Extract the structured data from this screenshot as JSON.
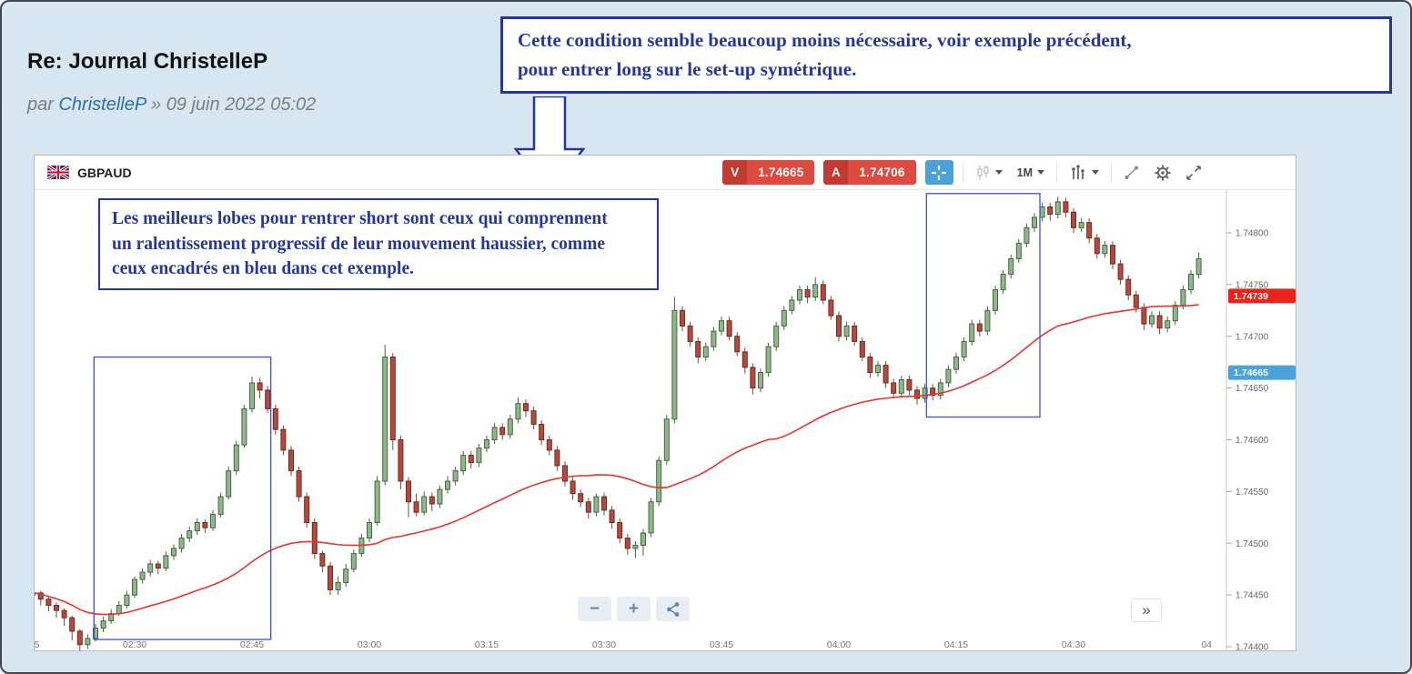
{
  "post": {
    "title": "Re: Journal ChristelleP",
    "byline_prefix": "par",
    "author": "ChristelleP",
    "separator": "»",
    "date": "09 juin 2022 05:02"
  },
  "annotations": {
    "accent_color": "#25379e",
    "callout_top_lines": {
      "0": "Cette condition semble beaucoup moins nécessaire, voir exemple précédent,",
      "1": "pour entrer long sur le set-up symétrique."
    },
    "callout_chart_lines": {
      "0": "Les meilleurs lobes pour rentrer short sont ceux qui comprennent",
      "1": "un ralentissement progressif de leur mouvement haussier, comme",
      "2": "ceux encadrés en bleu dans cet exemple."
    }
  },
  "toolbar": {
    "symbol": "GBPAUD",
    "sell_label": "V",
    "sell_price": "1.74665",
    "buy_label": "A",
    "buy_price": "1.74706",
    "timeframe": "1M"
  },
  "controls": {
    "zoom_out": "−",
    "zoom_in": "+",
    "collapse": "»"
  },
  "chart_data": {
    "type": "candlestick",
    "symbol": "GBPAUD",
    "interval": "1M",
    "price_base": 1.74,
    "price_unit": 1e-05,
    "price_ticks": [
      {
        "label": "1.74800",
        "v": 800
      },
      {
        "label": "1.74750",
        "v": 750
      },
      {
        "label": "1.74700",
        "v": 700
      },
      {
        "label": "1.74650",
        "v": 650
      },
      {
        "label": "1.74600",
        "v": 600
      },
      {
        "label": "1.74550",
        "v": 550
      },
      {
        "label": "1.74500",
        "v": 500
      },
      {
        "label": "1.74450",
        "v": 450
      },
      {
        "label": "1.74400",
        "v": 400
      }
    ],
    "time_ticks": [
      {
        "i": 2.5,
        "label": "5"
      },
      {
        "i": 15,
        "label": "02:30"
      },
      {
        "i": 30,
        "label": "02:45"
      },
      {
        "i": 45,
        "label": "03:00"
      },
      {
        "i": 60,
        "label": "03:15"
      },
      {
        "i": 75,
        "label": "03:30"
      },
      {
        "i": 90,
        "label": "03:45"
      },
      {
        "i": 105,
        "label": "04:00"
      },
      {
        "i": 120,
        "label": "04:15"
      },
      {
        "i": 135,
        "label": "04:30"
      },
      {
        "i": 152,
        "label": "04"
      }
    ],
    "price_tags": [
      {
        "label": "1.74739",
        "v": 739,
        "color": "#ea241a"
      },
      {
        "label": "1.74665",
        "v": 665,
        "color": "#4ba3dc"
      }
    ],
    "ma": {
      "type": "sma",
      "period": 50,
      "color": "#e8352a"
    },
    "highlight_boxes": [
      {
        "i1": 9.8,
        "i2": 32.4,
        "v1": 407,
        "v2": 680
      },
      {
        "i1": 116.2,
        "i2": 130.7,
        "v1": 622,
        "v2": 838
      }
    ],
    "colors": {
      "up_fill": "#93b58d",
      "up_stroke": "#3f6b39",
      "down_fill": "#b24a3e",
      "down_stroke": "#76281f",
      "wick": "#555555"
    },
    "candles": [
      [
        460,
        465,
        452,
        455
      ],
      [
        455,
        458,
        446,
        450
      ],
      [
        450,
        456,
        448,
        452
      ],
      [
        452,
        454,
        440,
        446
      ],
      [
        446,
        448,
        434,
        440
      ],
      [
        440,
        443,
        428,
        435
      ],
      [
        435,
        437,
        420,
        428
      ],
      [
        428,
        430,
        406,
        415
      ],
      [
        415,
        417,
        396,
        402
      ],
      [
        402,
        412,
        398,
        408
      ],
      [
        408,
        422,
        405,
        418
      ],
      [
        418,
        429,
        414,
        425
      ],
      [
        425,
        436,
        422,
        432
      ],
      [
        432,
        444,
        430,
        440
      ],
      [
        440,
        454,
        437,
        450
      ],
      [
        450,
        468,
        447,
        465
      ],
      [
        465,
        476,
        461,
        472
      ],
      [
        472,
        484,
        468,
        480
      ],
      [
        480,
        483,
        470,
        476
      ],
      [
        476,
        492,
        473,
        488
      ],
      [
        488,
        499,
        484,
        495
      ],
      [
        495,
        509,
        491,
        505
      ],
      [
        505,
        516,
        501,
        512
      ],
      [
        512,
        524,
        508,
        520
      ],
      [
        520,
        523,
        510,
        515
      ],
      [
        515,
        532,
        512,
        528
      ],
      [
        528,
        549,
        525,
        545
      ],
      [
        545,
        574,
        542,
        570
      ],
      [
        570,
        599,
        566,
        595
      ],
      [
        595,
        634,
        592,
        630
      ],
      [
        630,
        661,
        626,
        655
      ],
      [
        655,
        660,
        640,
        648
      ],
      [
        648,
        652,
        626,
        630
      ],
      [
        630,
        634,
        605,
        610
      ],
      [
        610,
        614,
        585,
        590
      ],
      [
        590,
        594,
        565,
        570
      ],
      [
        570,
        574,
        540,
        545
      ],
      [
        545,
        549,
        515,
        520
      ],
      [
        520,
        524,
        485,
        490
      ],
      [
        490,
        493,
        472,
        478
      ],
      [
        478,
        482,
        450,
        455
      ],
      [
        455,
        468,
        450,
        462
      ],
      [
        462,
        480,
        458,
        475
      ],
      [
        475,
        494,
        472,
        490
      ],
      [
        490,
        509,
        487,
        505
      ],
      [
        505,
        524,
        501,
        520
      ],
      [
        520,
        565,
        517,
        560
      ],
      [
        560,
        692,
        556,
        680
      ],
      [
        680,
        684,
        590,
        600
      ],
      [
        600,
        604,
        552,
        560
      ],
      [
        560,
        564,
        525,
        540
      ],
      [
        540,
        548,
        526,
        530
      ],
      [
        530,
        550,
        527,
        545
      ],
      [
        545,
        549,
        531,
        538
      ],
      [
        538,
        556,
        534,
        552
      ],
      [
        552,
        565,
        548,
        560
      ],
      [
        560,
        574,
        556,
        570
      ],
      [
        570,
        589,
        566,
        585
      ],
      [
        585,
        589,
        572,
        578
      ],
      [
        578,
        596,
        574,
        592
      ],
      [
        592,
        604,
        588,
        600
      ],
      [
        600,
        616,
        596,
        612
      ],
      [
        612,
        616,
        600,
        605
      ],
      [
        605,
        624,
        601,
        620
      ],
      [
        620,
        641,
        616,
        635
      ],
      [
        635,
        639,
        622,
        628
      ],
      [
        628,
        632,
        610,
        615
      ],
      [
        615,
        619,
        595,
        600
      ],
      [
        600,
        604,
        585,
        590
      ],
      [
        590,
        594,
        570,
        575
      ],
      [
        575,
        579,
        555,
        560
      ],
      [
        560,
        564,
        542,
        548
      ],
      [
        548,
        552,
        535,
        540
      ],
      [
        540,
        544,
        524,
        530
      ],
      [
        530,
        548,
        526,
        545
      ],
      [
        545,
        549,
        527,
        532
      ],
      [
        532,
        536,
        514,
        520
      ],
      [
        520,
        524,
        500,
        505
      ],
      [
        505,
        509,
        489,
        495
      ],
      [
        495,
        502,
        486,
        498
      ],
      [
        498,
        514,
        488,
        510
      ],
      [
        510,
        544,
        506,
        540
      ],
      [
        540,
        584,
        536,
        580
      ],
      [
        580,
        624,
        576,
        620
      ],
      [
        620,
        738,
        616,
        725
      ],
      [
        725,
        729,
        705,
        710
      ],
      [
        710,
        714,
        690,
        695
      ],
      [
        695,
        699,
        674,
        680
      ],
      [
        680,
        694,
        676,
        690
      ],
      [
        690,
        709,
        686,
        705
      ],
      [
        705,
        719,
        701,
        715
      ],
      [
        715,
        719,
        696,
        700
      ],
      [
        700,
        704,
        681,
        685
      ],
      [
        685,
        689,
        664,
        670
      ],
      [
        670,
        674,
        644,
        650
      ],
      [
        650,
        669,
        646,
        665
      ],
      [
        665,
        694,
        661,
        690
      ],
      [
        690,
        714,
        686,
        710
      ],
      [
        710,
        729,
        706,
        725
      ],
      [
        725,
        739,
        721,
        735
      ],
      [
        735,
        749,
        731,
        745
      ],
      [
        745,
        749,
        732,
        738
      ],
      [
        738,
        757,
        734,
        750
      ],
      [
        750,
        754,
        731,
        735
      ],
      [
        735,
        739,
        716,
        720
      ],
      [
        720,
        724,
        695,
        700
      ],
      [
        700,
        714,
        696,
        710
      ],
      [
        710,
        714,
        691,
        695
      ],
      [
        695,
        699,
        676,
        680
      ],
      [
        680,
        684,
        660,
        665
      ],
      [
        665,
        676,
        661,
        672
      ],
      [
        672,
        676,
        650,
        655
      ],
      [
        655,
        659,
        640,
        645
      ],
      [
        645,
        662,
        641,
        658
      ],
      [
        658,
        662,
        643,
        648
      ],
      [
        648,
        652,
        634,
        640
      ],
      [
        640,
        654,
        636,
        650
      ],
      [
        650,
        654,
        638,
        643
      ],
      [
        643,
        659,
        639,
        655
      ],
      [
        655,
        672,
        651,
        668
      ],
      [
        668,
        684,
        664,
        680
      ],
      [
        680,
        699,
        676,
        695
      ],
      [
        695,
        716,
        691,
        712
      ],
      [
        712,
        716,
        700,
        705
      ],
      [
        705,
        729,
        701,
        725
      ],
      [
        725,
        749,
        721,
        745
      ],
      [
        745,
        764,
        741,
        760
      ],
      [
        760,
        779,
        756,
        775
      ],
      [
        775,
        794,
        771,
        790
      ],
      [
        790,
        809,
        786,
        805
      ],
      [
        805,
        819,
        801,
        815
      ],
      [
        815,
        829,
        811,
        825
      ],
      [
        825,
        829,
        812,
        818
      ],
      [
        818,
        835,
        814,
        830
      ],
      [
        830,
        834,
        815,
        820
      ],
      [
        820,
        824,
        800,
        805
      ],
      [
        805,
        814,
        801,
        810
      ],
      [
        810,
        814,
        790,
        795
      ],
      [
        795,
        799,
        775,
        780
      ],
      [
        780,
        792,
        776,
        788
      ],
      [
        788,
        792,
        765,
        770
      ],
      [
        770,
        774,
        750,
        755
      ],
      [
        755,
        759,
        735,
        740
      ],
      [
        740,
        744,
        723,
        728
      ],
      [
        728,
        732,
        706,
        712
      ],
      [
        712,
        724,
        708,
        720
      ],
      [
        720,
        724,
        702,
        708
      ],
      [
        708,
        719,
        704,
        715
      ],
      [
        715,
        734,
        711,
        730
      ],
      [
        730,
        749,
        726,
        745
      ],
      [
        745,
        764,
        741,
        760
      ],
      [
        760,
        781,
        756,
        775
      ]
    ]
  }
}
